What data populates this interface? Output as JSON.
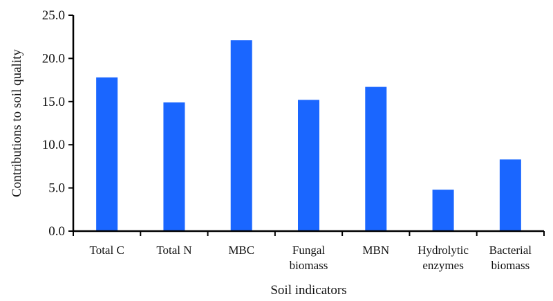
{
  "chart_data": {
    "type": "bar",
    "title": "",
    "xlabel": "Soil indicators",
    "ylabel": "Contributions to soil quality",
    "ylim": [
      0,
      25
    ],
    "yticks": [
      "0.0",
      "5.0",
      "10.0",
      "15.0",
      "20.0",
      "25.0"
    ],
    "categories": [
      [
        "Total C"
      ],
      [
        "Total N"
      ],
      [
        "MBC"
      ],
      [
        "Fungal",
        "biomass"
      ],
      [
        "MBN"
      ],
      [
        "Hydrolytic",
        "enzymes"
      ],
      [
        "Bacterial",
        "biomass"
      ]
    ],
    "values": [
      17.8,
      14.9,
      22.1,
      15.2,
      16.7,
      4.8,
      8.3
    ],
    "grid": false,
    "legend": "none",
    "bar_color": "#1a66ff",
    "axis_color": "#000000"
  }
}
